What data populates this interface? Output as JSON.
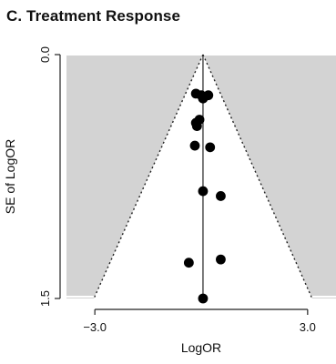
{
  "chart_data": {
    "type": "scatter",
    "title": "C. Treatment Response",
    "xlabel": "LogOR",
    "ylabel": "SE of LogOR",
    "x_ticks": [
      {
        "value": -3.0,
        "label": "−3.0"
      },
      {
        "value": 3.0,
        "label": "3.0"
      }
    ],
    "y_ticks": [
      {
        "value": 0.0,
        "label": "0.0"
      },
      {
        "value": 1.5,
        "label": "1.5"
      }
    ],
    "xlim": [
      -3.8,
      3.8
    ],
    "ylim": [
      0.0,
      1.5
    ],
    "y_inverted": true,
    "pooled_estimate": 0.05,
    "points": [
      {
        "x": -0.15,
        "y": 0.24
      },
      {
        "x": 0.0,
        "y": 0.25
      },
      {
        "x": 0.2,
        "y": 0.25
      },
      {
        "x": 0.05,
        "y": 0.27
      },
      {
        "x": -0.05,
        "y": 0.4
      },
      {
        "x": -0.15,
        "y": 0.42
      },
      {
        "x": -0.12,
        "y": 0.44
      },
      {
        "x": -0.18,
        "y": 0.56
      },
      {
        "x": 0.25,
        "y": 0.57
      },
      {
        "x": 0.05,
        "y": 0.84
      },
      {
        "x": 0.55,
        "y": 0.87
      },
      {
        "x": -0.35,
        "y": 1.28
      },
      {
        "x": 0.55,
        "y": 1.26
      },
      {
        "x": 0.05,
        "y": 1.5
      }
    ],
    "colors": {
      "outside_region": "#d3d3d3",
      "inside_region": "#ffffff",
      "points": "#000000",
      "axes": "#222222"
    }
  }
}
